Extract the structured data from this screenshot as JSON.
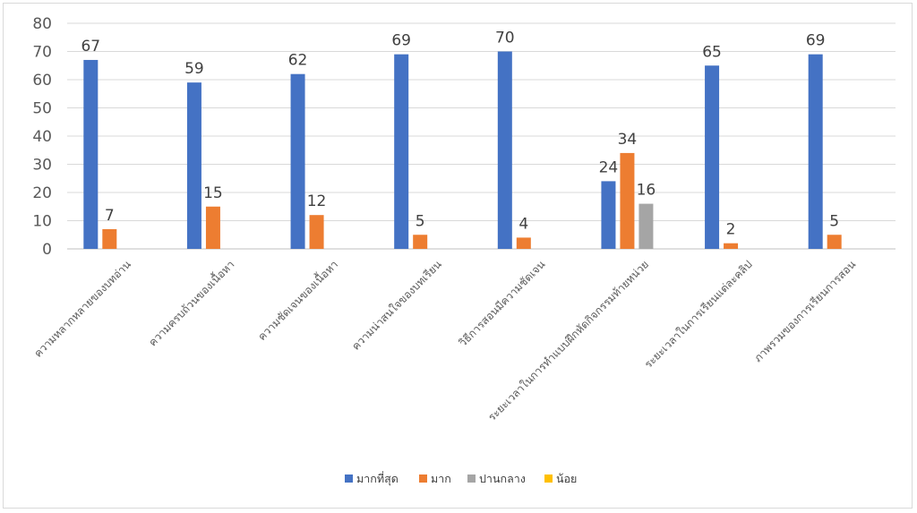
{
  "chart_data": {
    "type": "bar",
    "title": "",
    "xlabel": "",
    "ylabel": "",
    "ylim": [
      0,
      80
    ],
    "yticks": [
      0,
      10,
      20,
      30,
      40,
      50,
      60,
      70,
      80
    ],
    "grid": true,
    "legend_position": "bottom",
    "categories": [
      "ความหลากหลายของบทอ่าน",
      "ความครบถ้วนของเนื้อหา",
      "ความชัดเจนของเนื้อหา",
      "ความน่าสนใจของบทเรียน",
      "วิธีการสอนมีความชัดเจน",
      "ระยะเวลาในการทำแบบฝึกหัดกิจกรรมท้ายหน่วย",
      "ระยะเวลาในการเรียนแต่ละคลิป",
      "ภาพรวมของการเรียนการสอน"
    ],
    "series": [
      {
        "name": "มากที่สุด",
        "color": "#4472c4",
        "values": [
          67,
          59,
          62,
          69,
          70,
          24,
          65,
          69
        ]
      },
      {
        "name": "มาก",
        "color": "#ed7d31",
        "values": [
          7,
          15,
          12,
          5,
          4,
          34,
          2,
          5
        ]
      },
      {
        "name": "ปานกลาง",
        "color": "#a5a5a5",
        "values": [
          null,
          null,
          null,
          null,
          null,
          16,
          null,
          null
        ]
      },
      {
        "name": "น้อย",
        "color": "#ffc000",
        "values": [
          null,
          null,
          null,
          null,
          null,
          null,
          null,
          null
        ]
      }
    ]
  }
}
